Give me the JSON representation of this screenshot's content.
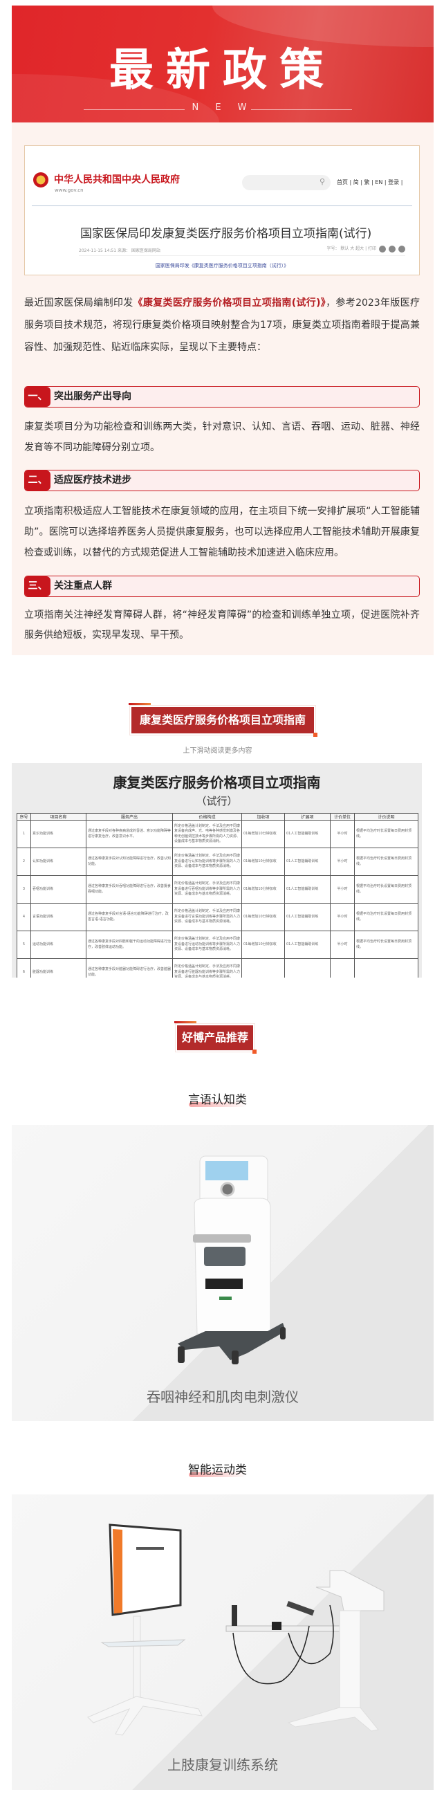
{
  "banner": {
    "title": "最新政策",
    "subtitle": "N E W"
  },
  "screenshot_card": {
    "site_name": "中华人民共和国中央人民政府",
    "site_url": "www.gov.cn",
    "nav_links": "首页 | 简 | 繁 | EN | 登录 |",
    "article_title": "国家医保局印发康复类医疗服务价格项目立项指南(试行)",
    "meta": "2024-11-15 14:51    来源： 国家医保局网站",
    "tools": "字号： 默认 大 超大  |  打印",
    "link": "国家医保局印发《康复类医疗服务价格项目立项指南（试行）》"
  },
  "intro": {
    "before": "最近国家医保局编制印发",
    "highlight": "《康复类医疗服务价格项目立项指南(试行)》",
    "after": "，参考2023年版医疗服务项目技术规范，将现行康复类价格项目映射整合为17项，康复类立项指南着眼于提高兼容性、加强规范性、贴近临床实际，呈现以下主要特点："
  },
  "sections": [
    {
      "num": "一、",
      "title": "突出服务产出导向",
      "body": "康复类项目分为功能检查和训练两大类，针对意识、认知、言语、吞咽、运动、脏器、神经发育等不同功能障碍分别立项。"
    },
    {
      "num": "二、",
      "title": "适应医疗技术进步",
      "body": "立项指南积极适应人工智能技术在康复领域的应用，在主项目下统一安排扩展项“人工智能辅助”。医院可以选择培养医务人员提供康复服务，也可以选择应用人工智能技术辅助开展康复检查或训练，以替代的方式规范促进人工智能辅助技术加速进入临床应用。"
    },
    {
      "num": "三、",
      "title": "关注重点人群",
      "body": "立项指南关注神经发育障碍人群，将“神经发育障碍”的检查和训练单独立项，促进医院补齐服务供给短板，实现早发现、早干预。"
    }
  ],
  "guide_badge": "康复类医疗服务价格项目立项指南",
  "scroll_hint": "上下滑动阅读更多内容",
  "guide_doc": {
    "title": "康复类医疗服务价格项目立项指南",
    "subtitle": "（试行）",
    "columns": [
      "序号",
      "项目名称",
      "服务产出",
      "价格构成",
      "加收项",
      "扩展项",
      "计价单位",
      "计价说明"
    ],
    "rows": [
      [
        "1",
        "意识功能训练",
        "通过康复手段对各种疾病造成的昏迷、意识功能障碍等进行康复治疗，改善意识水平。",
        "所定价格涵盖计划制定、手法及应用不同康复设备完成声、光、电等各种感觉刺激及各种无创脑调控技术等步骤所需的人力资源、设备成本与基本物质资源消耗。",
        "01每增加10分钟加收",
        "01人工智能辅助训练",
        "半小时",
        "根据平均治疗时长设置每日费用封顶线。"
      ],
      [
        "2",
        "认知功能训练",
        "通过各种康复手段对认知功能障碍进行治疗，改善认知功能。",
        "所定价格涵盖计划制定、手法及应用不同康复设备进行认知功能训练等步骤所需的人力资源、设备成本与基本物质资源消耗。",
        "01每增加10分钟加收",
        "01人工智能辅助训练",
        "半小时",
        "根据平均治疗时长设置每日费用封顶线。"
      ],
      [
        "3",
        "吞咽功能训练",
        "通过各种康复手段对吞咽功能障碍进行治疗，改善摄食吞咽功能。",
        "所定价格涵盖计划制定、手法及应用不同康复设备进行吞咽功能训练等步骤所需的人力资源、设备成本与基本物质资源消耗。",
        "01每增加10分钟加收",
        "01人工智能辅助训练",
        "半小时",
        "根据平均治疗时长设置每日费用封顶线。"
      ],
      [
        "4",
        "言语功能训练",
        "通过各种康复手段对言语-语言功能障碍进行治疗，改善言语-语言功能。",
        "所定价格涵盖计划制定、手法及应用不同康复设备进行言语功能训练等步骤所需的人力资源、设备成本与基本物质资源消耗。",
        "01每增加10分钟加收",
        "01人工智能辅助训练",
        "半小时",
        "根据平均治疗时长设置每日费用封顶线。"
      ],
      [
        "5",
        "运动功能训练",
        "通过各种康复手段对四肢和躯干的运动功能障碍进行治疗，改善肢体运动功能。",
        "所定价格涵盖计划制定、手法及应用不同康复设备进行运动功能训练等步骤所需的人力资源、设备成本与基本物质资源消耗。",
        "01每增加10分钟加收",
        "01人工智能辅助训练",
        "半小时",
        "根据平均治疗时长设置每日费用封顶线。"
      ],
      [
        "6",
        "脏器功能训练",
        "通过各种康复手段对脏器功能障碍进行治疗，改善脏器功能。",
        "所定价格涵盖计划制定、手法及应用不同康复设备进行脏器功能训练等步骤所需的人力资源、设备成本与基本物质资源消耗。",
        "",
        "",
        "",
        ""
      ]
    ]
  },
  "products_badge": "好博产品推荐",
  "products": [
    {
      "category": "言语认知类",
      "name": "吞咽神经和肌肉电刺激仪"
    },
    {
      "category": "智能运动类",
      "name": "上肢康复训练系统"
    }
  ],
  "colors": {
    "accent": "#c8161d",
    "badge": "#b32a2a",
    "pink_bg": "#fdf3ef"
  }
}
